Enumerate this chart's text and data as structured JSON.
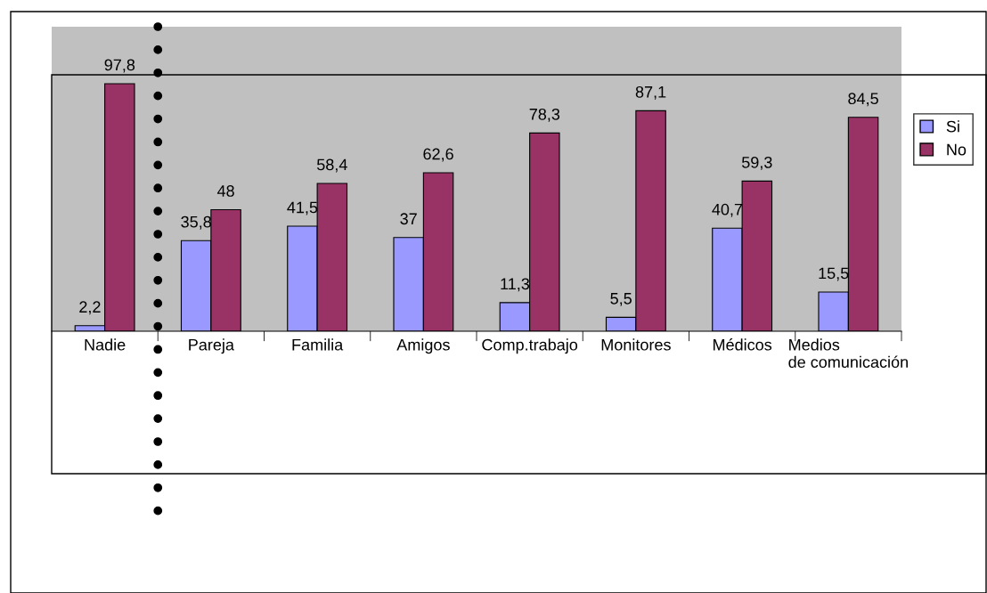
{
  "chart_data": {
    "type": "bar",
    "categories": [
      "Nadie",
      "Pareja",
      "Familia",
      "Amigos",
      "Comp.trabajo",
      "Monitores",
      "Médicos",
      "Medios\nde comunicación"
    ],
    "series": [
      {
        "name": "Si",
        "color": "#9999ff",
        "values": [
          2.2,
          35.8,
          41.5,
          37,
          11.3,
          5.5,
          40.7,
          15.5
        ],
        "value_labels": [
          "2,2",
          "35,8",
          "41,5",
          "37",
          "11,3",
          "5,5",
          "40,7",
          "15,5"
        ]
      },
      {
        "name": "No",
        "color": "#993366",
        "values": [
          97.8,
          48,
          58.4,
          62.6,
          78.3,
          87.1,
          59.3,
          84.5
        ],
        "value_labels": [
          "97,8",
          "48",
          "58,4",
          "62,6",
          "78,3",
          "87,1",
          "59,3",
          "84,5"
        ]
      }
    ],
    "legend": "right",
    "grid": false
  }
}
